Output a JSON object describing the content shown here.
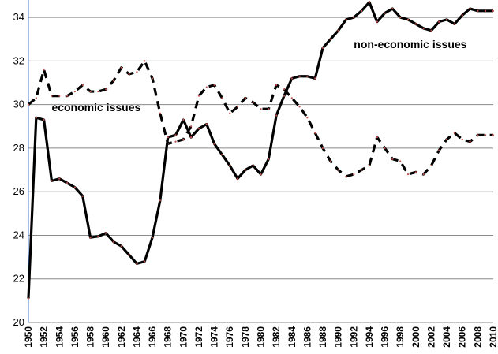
{
  "chart_data": {
    "type": "line",
    "title": "",
    "xlabel": "",
    "ylabel": "",
    "xlim": [
      1950,
      2010
    ],
    "ylim": [
      20,
      34.8
    ],
    "yticks": [
      20,
      22,
      24,
      26,
      28,
      30,
      32,
      34
    ],
    "xticks": [
      1950,
      1952,
      1954,
      1956,
      1958,
      1960,
      1962,
      1964,
      1966,
      1968,
      1970,
      1972,
      1974,
      1976,
      1978,
      1980,
      1982,
      1984,
      1986,
      1988,
      1990,
      1992,
      1994,
      1996,
      1998,
      2000,
      2002,
      2004,
      2006,
      2008,
      2010
    ],
    "grid": "horizontal",
    "annotations": [
      {
        "text": "economic issues",
        "x": 1953,
        "y": 29.7
      },
      {
        "text": "non-economic issues",
        "x": 1992,
        "y": 32.6
      }
    ],
    "series": [
      {
        "name": "economic issues",
        "style": "dashed",
        "color": "#000000",
        "x": [
          1950,
          1951,
          1952,
          1953,
          1954,
          1955,
          1956,
          1957,
          1958,
          1959,
          1960,
          1961,
          1962,
          1963,
          1964,
          1965,
          1966,
          1967,
          1968,
          1969,
          1970,
          1971,
          1972,
          1973,
          1974,
          1975,
          1976,
          1977,
          1978,
          1979,
          1980,
          1981,
          1982,
          1983,
          1984,
          1985,
          1986,
          1987,
          1988,
          1989,
          1990,
          1991,
          1992,
          1993,
          1994,
          1995,
          1996,
          1997,
          1998,
          1999,
          2000,
          2001,
          2002,
          2003,
          2004,
          2005,
          2006,
          2007,
          2008,
          2009,
          2010
        ],
        "y": [
          30.0,
          30.3,
          31.6,
          30.4,
          30.4,
          30.4,
          30.6,
          30.9,
          30.6,
          30.6,
          30.7,
          31.1,
          31.7,
          31.4,
          31.5,
          32.0,
          31.2,
          29.6,
          28.2,
          28.3,
          28.4,
          29.0,
          30.4,
          30.8,
          30.9,
          30.3,
          29.6,
          29.9,
          30.3,
          30.1,
          29.8,
          29.8,
          30.9,
          30.7,
          30.3,
          29.9,
          29.4,
          28.7,
          28.0,
          27.4,
          27.0,
          26.7,
          26.8,
          27.0,
          27.2,
          28.5,
          28.0,
          27.5,
          27.4,
          26.8,
          26.9,
          26.8,
          27.2,
          27.9,
          28.4,
          28.7,
          28.4,
          28.3,
          28.6,
          28.6,
          28.6
        ]
      },
      {
        "name": "non-economic issues",
        "style": "solid",
        "color": "#000000",
        "x": [
          1950,
          1951,
          1952,
          1953,
          1954,
          1955,
          1956,
          1957,
          1958,
          1959,
          1960,
          1961,
          1962,
          1963,
          1964,
          1965,
          1966,
          1967,
          1968,
          1969,
          1970,
          1971,
          1972,
          1973,
          1974,
          1975,
          1976,
          1977,
          1978,
          1979,
          1980,
          1981,
          1982,
          1983,
          1984,
          1985,
          1986,
          1987,
          1988,
          1989,
          1990,
          1991,
          1992,
          1993,
          1994,
          1995,
          1996,
          1997,
          1998,
          1999,
          2000,
          2001,
          2002,
          2003,
          2004,
          2005,
          2006,
          2007,
          2008,
          2009,
          2010
        ],
        "y": [
          21.1,
          29.4,
          29.3,
          26.5,
          26.6,
          26.4,
          26.2,
          25.8,
          23.9,
          23.95,
          24.1,
          23.7,
          23.5,
          23.1,
          22.7,
          22.8,
          23.9,
          25.6,
          28.5,
          28.6,
          29.3,
          28.5,
          28.9,
          29.1,
          28.2,
          27.7,
          27.2,
          26.6,
          27.0,
          27.2,
          26.8,
          27.5,
          29.5,
          30.4,
          31.2,
          31.3,
          31.3,
          31.2,
          32.6,
          33.0,
          33.4,
          33.9,
          34.0,
          34.3,
          34.7,
          33.8,
          34.2,
          34.4,
          34.0,
          33.9,
          33.7,
          33.5,
          33.4,
          33.8,
          33.9,
          33.7,
          34.1,
          34.4,
          34.3,
          34.3,
          34.3
        ]
      }
    ]
  }
}
